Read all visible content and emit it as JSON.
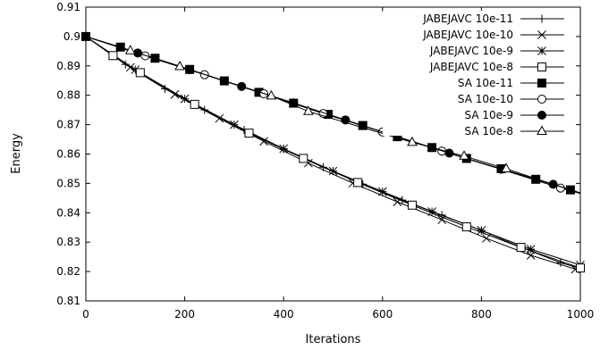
{
  "chart_data": {
    "type": "line",
    "xlabel": "Iterations",
    "ylabel": "Energy",
    "xlim": [
      0,
      1000
    ],
    "ylim": [
      0.81,
      0.91
    ],
    "xticks": [
      "0",
      "200",
      "400",
      "600",
      "800",
      "1000"
    ],
    "yticks": [
      "0.81",
      "0.82",
      "0.83",
      "0.84",
      "0.85",
      "0.86",
      "0.87",
      "0.88",
      "0.89",
      "0.9",
      "0.91"
    ],
    "grid": false,
    "legend_position": "top-right",
    "series": [
      {
        "name": "JABEJAVC 10e-11",
        "marker": "plus",
        "x": [
          0,
          80,
          160,
          240,
          320,
          400,
          480,
          560,
          640,
          720,
          800,
          880,
          960,
          1000
        ],
        "y": [
          0.9,
          0.8905,
          0.8822,
          0.875,
          0.8682,
          0.8617,
          0.8555,
          0.8497,
          0.8443,
          0.8392,
          0.834,
          0.8283,
          0.823,
          0.821
        ]
      },
      {
        "name": "JABEJAVC 10e-10",
        "marker": "x",
        "x": [
          0,
          90,
          180,
          270,
          360,
          450,
          540,
          630,
          720,
          810,
          900,
          990
        ],
        "y": [
          0.9,
          0.8895,
          0.8803,
          0.8721,
          0.8643,
          0.8569,
          0.8501,
          0.8437,
          0.8376,
          0.8313,
          0.8255,
          0.8208
        ]
      },
      {
        "name": "JABEJAVC 10e-9",
        "marker": "star",
        "x": [
          0,
          100,
          200,
          300,
          400,
          500,
          600,
          700,
          800,
          900,
          1000
        ],
        "y": [
          0.9,
          0.8887,
          0.8788,
          0.87,
          0.8618,
          0.8542,
          0.8472,
          0.8404,
          0.834,
          0.8276,
          0.8222
        ]
      },
      {
        "name": "JABEJAVC 10e-8",
        "marker": "square-open",
        "x": [
          0,
          55,
          110,
          220,
          330,
          440,
          550,
          660,
          770,
          880,
          1000
        ],
        "y": [
          0.9,
          0.8935,
          0.8877,
          0.8769,
          0.8671,
          0.8585,
          0.8503,
          0.8426,
          0.8352,
          0.8282,
          0.8212
        ]
      },
      {
        "name": "SA 10e-11",
        "marker": "square-filled",
        "x": [
          0,
          70,
          140,
          210,
          280,
          350,
          420,
          490,
          560,
          630,
          700,
          770,
          840,
          910,
          980,
          1000
        ],
        "y": [
          0.9,
          0.8964,
          0.8926,
          0.8888,
          0.8849,
          0.881,
          0.8773,
          0.8735,
          0.8697,
          0.8659,
          0.8622,
          0.8585,
          0.855,
          0.8514,
          0.8478,
          0.8466
        ]
      },
      {
        "name": "SA 10e-10",
        "marker": "circle-open",
        "x": [
          0,
          120,
          240,
          360,
          480,
          600,
          720,
          840,
          960,
          1000
        ],
        "y": [
          0.9,
          0.8934,
          0.887,
          0.8805,
          0.8738,
          0.8675,
          0.861,
          0.8548,
          0.8484,
          0.8466
        ]
      },
      {
        "name": "SA 10e-9",
        "marker": "circle-filled",
        "x": [
          0,
          105,
          210,
          315,
          420,
          525,
          630,
          735,
          840,
          945,
          1000
        ],
        "y": [
          0.9,
          0.8944,
          0.8887,
          0.883,
          0.8774,
          0.8716,
          0.8659,
          0.8603,
          0.8549,
          0.8497,
          0.8468
        ]
      },
      {
        "name": "SA 10e-8",
        "marker": "triangle-open",
        "x": [
          0,
          90,
          190,
          375,
          450,
          660,
          765,
          850,
          1000
        ],
        "y": [
          0.9,
          0.8952,
          0.8898,
          0.8798,
          0.8745,
          0.864,
          0.8593,
          0.855,
          0.8466
        ]
      }
    ]
  }
}
